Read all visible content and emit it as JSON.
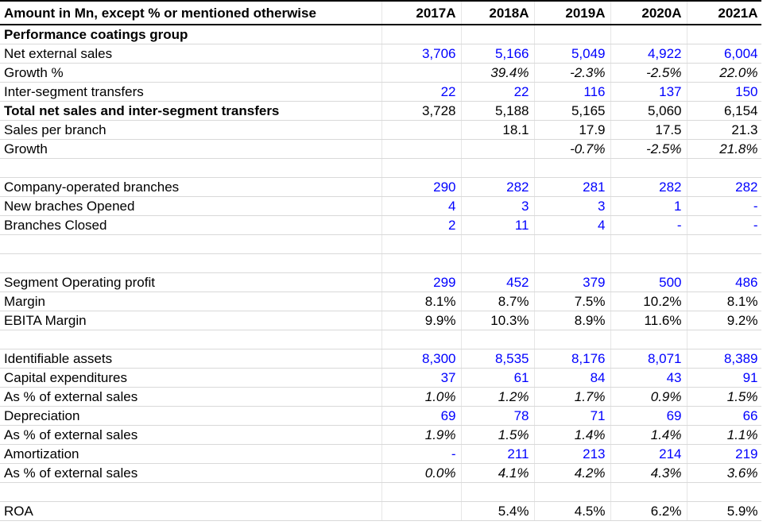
{
  "header": {
    "label": "Amount in Mn, except % or mentioned otherwise",
    "years": [
      "2017A",
      "2018A",
      "2019A",
      "2020A",
      "2021A"
    ]
  },
  "rows": [
    {
      "name": "section-title",
      "label": "Performance coatings group",
      "bold": true,
      "values": [
        "",
        "",
        "",
        "",
        ""
      ]
    },
    {
      "name": "net-external-sales",
      "label": "Net external sales",
      "color": "blue",
      "values": [
        "3,706",
        "5,166",
        "5,049",
        "4,922",
        "6,004"
      ]
    },
    {
      "name": "growth-pct",
      "label": "Growth %",
      "italic": true,
      "values": [
        "",
        "39.4%",
        "-2.3%",
        "-2.5%",
        "22.0%"
      ]
    },
    {
      "name": "inter-segment-transfers",
      "label": "Inter-segment transfers",
      "color": "blue",
      "values": [
        "22",
        "22",
        "116",
        "137",
        "150"
      ]
    },
    {
      "name": "total-net-sales",
      "label": "Total net sales and inter-segment transfers",
      "bold_label": true,
      "values": [
        "3,728",
        "5,188",
        "5,165",
        "5,060",
        "6,154"
      ]
    },
    {
      "name": "sales-per-branch",
      "label": "Sales per branch",
      "values": [
        "",
        "18.1",
        "17.9",
        "17.5",
        "21.3"
      ]
    },
    {
      "name": "growth",
      "label": "Growth",
      "italic": true,
      "values": [
        "",
        "",
        "-0.7%",
        "-2.5%",
        "21.8%"
      ]
    },
    {
      "name": "spacer",
      "label": "",
      "values": [
        "",
        "",
        "",
        "",
        ""
      ]
    },
    {
      "name": "company-operated-branches",
      "label": "Company-operated branches",
      "color": "blue",
      "values": [
        "290",
        "282",
        "281",
        "282",
        "282"
      ]
    },
    {
      "name": "new-branches-opened",
      "label": "New braches Opened",
      "color": "blue",
      "values": [
        "4",
        "3",
        "3",
        "1",
        "-"
      ]
    },
    {
      "name": "branches-closed",
      "label": "Branches Closed",
      "color": "blue",
      "values": [
        "2",
        "11",
        "4",
        "-",
        "-"
      ]
    },
    {
      "name": "spacer",
      "label": "",
      "values": [
        "",
        "",
        "",
        "",
        ""
      ]
    },
    {
      "name": "spacer",
      "label": "",
      "values": [
        "",
        "",
        "",
        "",
        ""
      ]
    },
    {
      "name": "segment-operating-profit",
      "label": "Segment Operating profit",
      "color": "blue",
      "values": [
        "299",
        "452",
        "379",
        "500",
        "486"
      ]
    },
    {
      "name": "margin",
      "label": "Margin",
      "values": [
        "8.1%",
        "8.7%",
        "7.5%",
        "10.2%",
        "8.1%"
      ]
    },
    {
      "name": "ebita-margin",
      "label": "EBITA Margin",
      "values": [
        "9.9%",
        "10.3%",
        "8.9%",
        "11.6%",
        "9.2%"
      ]
    },
    {
      "name": "spacer",
      "label": "",
      "values": [
        "",
        "",
        "",
        "",
        ""
      ]
    },
    {
      "name": "identifiable-assets",
      "label": "Identifiable assets",
      "color": "blue",
      "values": [
        "8,300",
        "8,535",
        "8,176",
        "8,071",
        "8,389"
      ]
    },
    {
      "name": "capital-expenditures",
      "label": "Capital expenditures",
      "color": "blue",
      "values": [
        "37",
        "61",
        "84",
        "43",
        "91"
      ]
    },
    {
      "name": "capex-pct-sales",
      "label": "As % of external sales",
      "italic": true,
      "values": [
        "1.0%",
        "1.2%",
        "1.7%",
        "0.9%",
        "1.5%"
      ]
    },
    {
      "name": "depreciation",
      "label": "Depreciation",
      "color": "blue",
      "values": [
        "69",
        "78",
        "71",
        "69",
        "66"
      ]
    },
    {
      "name": "depreciation-pct-sales",
      "label": "As % of external sales",
      "italic": true,
      "values": [
        "1.9%",
        "1.5%",
        "1.4%",
        "1.4%",
        "1.1%"
      ]
    },
    {
      "name": "amortization",
      "label": "Amortization",
      "color": "blue",
      "values": [
        "-",
        "211",
        "213",
        "214",
        "219"
      ]
    },
    {
      "name": "amortization-pct-sales",
      "label": "As % of external sales",
      "italic": true,
      "values": [
        "0.0%",
        "4.1%",
        "4.2%",
        "4.3%",
        "3.6%"
      ]
    },
    {
      "name": "spacer",
      "label": "",
      "values": [
        "",
        "",
        "",
        "",
        ""
      ]
    },
    {
      "name": "roa",
      "label": "ROA",
      "values": [
        "",
        "5.4%",
        "4.5%",
        "6.2%",
        "5.9%"
      ]
    }
  ],
  "colors": {
    "blue": "#0000ff",
    "black": "#000000",
    "gridline": "#d9d9d9"
  }
}
